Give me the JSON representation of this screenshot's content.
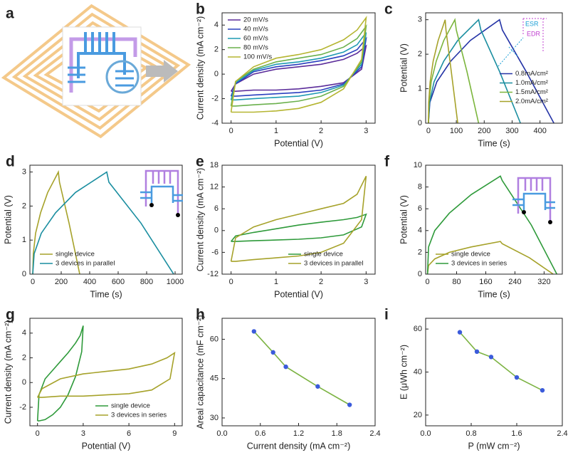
{
  "illustration": {
    "label": "a"
  },
  "chart_data": [
    {
      "type": "line",
      "label": "b",
      "x_label": "Potential (V)",
      "y_label": "Current density (mA cm⁻²)",
      "xlim": [
        -0.2,
        3.2
      ],
      "xticks": [
        0,
        1,
        2,
        3
      ],
      "ylim": [
        -4,
        5
      ],
      "yticks": [
        -4,
        -2,
        0,
        2,
        4
      ],
      "legend": "upper left",
      "x": [
        0,
        0.1,
        0.5,
        1,
        1.5,
        2,
        2.5,
        2.8,
        3,
        2.9,
        2.5,
        2,
        1.5,
        1,
        0.5,
        0.1,
        0
      ],
      "series": [
        {
          "name": "20 mV/s",
          "color": "#5b2c9a",
          "values": [
            -1.4,
            -0.8,
            0.0,
            0.4,
            0.6,
            0.8,
            1.2,
            1.7,
            2.3,
            0.4,
            -0.7,
            -1.0,
            -1.2,
            -1.3,
            -1.3,
            -1.4,
            -1.4
          ]
        },
        {
          "name": "40 mV/s",
          "color": "#2a3fbf",
          "values": [
            -1.8,
            -0.8,
            0.2,
            0.6,
            0.8,
            1.1,
            1.5,
            2.0,
            2.9,
            0.6,
            -0.8,
            -1.3,
            -1.5,
            -1.6,
            -1.7,
            -1.8,
            -1.8
          ]
        },
        {
          "name": "60 mV/s",
          "color": "#1f9bb3",
          "values": [
            -2.1,
            -0.7,
            0.3,
            0.8,
            1.0,
            1.3,
            1.8,
            2.4,
            3.4,
            0.8,
            -0.9,
            -1.5,
            -1.8,
            -1.9,
            -2.0,
            -2.1,
            -2.1
          ]
        },
        {
          "name": "80 mV/s",
          "color": "#6ab04c",
          "values": [
            -2.6,
            -0.6,
            0.4,
            1.0,
            1.3,
            1.6,
            2.2,
            2.9,
            3.9,
            1.0,
            -1.0,
            -1.8,
            -2.2,
            -2.4,
            -2.5,
            -2.6,
            -2.6
          ]
        },
        {
          "name": "100 mV/s",
          "color": "#b5b531",
          "values": [
            -3.1,
            -0.6,
            0.6,
            1.3,
            1.6,
            2.0,
            2.8,
            3.6,
            4.6,
            1.2,
            -1.2,
            -2.3,
            -2.8,
            -3.0,
            -3.1,
            -3.1,
            -3.1
          ]
        }
      ]
    },
    {
      "type": "line",
      "label": "c",
      "x_label": "Time (s)",
      "y_label": "Potential (V)",
      "xlim": [
        -10,
        480
      ],
      "xticks": [
        0,
        100,
        200,
        300,
        400
      ],
      "ylim": [
        0,
        3.2
      ],
      "yticks": [
        0,
        1,
        2,
        3
      ],
      "legend": "center right",
      "annotations": [
        "ESR",
        "EDR"
      ],
      "series": [
        {
          "name": "0.8mA/cm²",
          "color": "#2433a6",
          "x": [
            0,
            5,
            30,
            80,
            150,
            255,
            265,
            350,
            450
          ],
          "values": [
            0,
            0.6,
            1.2,
            1.8,
            2.4,
            3.0,
            2.7,
            1.5,
            0
          ]
        },
        {
          "name": "1.0mA/cm²",
          "color": "#1a8ea0",
          "x": [
            0,
            4,
            20,
            55,
            105,
            180,
            188,
            255,
            330
          ],
          "values": [
            0,
            0.6,
            1.2,
            1.8,
            2.4,
            3.0,
            2.7,
            1.5,
            0
          ]
        },
        {
          "name": "1.5mA/cm²",
          "color": "#7bb53c",
          "x": [
            0,
            2,
            10,
            28,
            55,
            95,
            100,
            138,
            180
          ],
          "values": [
            0,
            0.6,
            1.2,
            1.8,
            2.4,
            3.0,
            2.7,
            1.5,
            0
          ]
        },
        {
          "name": "2.0mA/cm²",
          "color": "#a6a22a",
          "x": [
            0,
            1,
            6,
            17,
            35,
            60,
            63,
            82,
            105
          ],
          "values": [
            0,
            0.6,
            1.2,
            1.8,
            2.4,
            3.0,
            2.7,
            1.5,
            0
          ]
        }
      ]
    },
    {
      "type": "line",
      "label": "d",
      "x_label": "Time (s)",
      "y_label": "Potential (V)",
      "xlim": [
        -20,
        1050
      ],
      "xticks": [
        0,
        200,
        400,
        600,
        800,
        1000
      ],
      "ylim": [
        0,
        3.2
      ],
      "yticks": [
        0,
        1,
        2,
        3
      ],
      "legend": "lower left",
      "series": [
        {
          "name": "single device",
          "color": "#a6a22a",
          "x": [
            0,
            4,
            20,
            55,
            105,
            180,
            188,
            255,
            330
          ],
          "values": [
            0,
            0.6,
            1.2,
            1.8,
            2.4,
            3.0,
            2.7,
            1.5,
            0
          ]
        },
        {
          "name": "3 devices in parallel",
          "color": "#1a8ea0",
          "x": [
            0,
            10,
            60,
            160,
            300,
            520,
            535,
            760,
            990
          ],
          "values": [
            0,
            0.6,
            1.2,
            1.8,
            2.4,
            3.0,
            2.7,
            1.5,
            0
          ]
        }
      ]
    },
    {
      "type": "line",
      "label": "e",
      "x_label": "Potential (V)",
      "y_label": "Current density (mA cm⁻²)",
      "xlim": [
        -0.2,
        3.2
      ],
      "xticks": [
        0,
        1,
        2,
        3
      ],
      "ylim": [
        -12,
        18
      ],
      "yticks": [
        -12,
        -6,
        0,
        6,
        12,
        18
      ],
      "legend": "lower right",
      "x": [
        0,
        0.1,
        0.5,
        1,
        1.5,
        2,
        2.5,
        2.8,
        3,
        2.9,
        2.5,
        2,
        1.5,
        1,
        0.5,
        0.1,
        0
      ],
      "series": [
        {
          "name": "single device",
          "color": "#2e9a3a",
          "values": [
            -3,
            -1.5,
            -0.5,
            0.5,
            1.5,
            2.3,
            3.0,
            3.6,
            4.5,
            1,
            -1.2,
            -2,
            -2.4,
            -2.6,
            -2.8,
            -3,
            -3
          ]
        },
        {
          "name": "3 devices in parallel",
          "color": "#a6a22a",
          "values": [
            -8.5,
            -2,
            1,
            3,
            4.5,
            6,
            7.5,
            10,
            15,
            3,
            -3.5,
            -6,
            -7,
            -7.5,
            -8,
            -8.5,
            -8.5
          ]
        }
      ]
    },
    {
      "type": "line",
      "label": "f",
      "x_label": "Time (s)",
      "y_label": "Potential (V)",
      "xlim": [
        -5,
        370
      ],
      "xticks": [
        0,
        80,
        160,
        240,
        320
      ],
      "ylim": [
        0,
        10
      ],
      "yticks": [
        0,
        2,
        4,
        6,
        8,
        10
      ],
      "legend": "lower left",
      "series": [
        {
          "name": "single device",
          "color": "#a6a22a",
          "x": [
            0,
            3,
            20,
            60,
            120,
            200,
            205,
            280,
            345
          ],
          "values": [
            0,
            0.8,
            1.4,
            2.0,
            2.5,
            3.0,
            2.8,
            1.5,
            0
          ]
        },
        {
          "name": "3 devices in series",
          "color": "#2e9a3a",
          "x": [
            0,
            3,
            20,
            60,
            120,
            200,
            205,
            285,
            355
          ],
          "values": [
            0,
            2.5,
            4,
            5.6,
            7.3,
            9,
            8.6,
            4.5,
            0
          ]
        }
      ]
    },
    {
      "type": "line",
      "label": "g",
      "x_label": "Potential (V)",
      "y_label": "Current density (mA cm⁻²)",
      "xlim": [
        -0.5,
        9.5
      ],
      "xticks": [
        0,
        3,
        6,
        9
      ],
      "ylim": [
        -3.5,
        5.2
      ],
      "yticks": [
        -2,
        0,
        2,
        4
      ],
      "legend": "lower right",
      "series": [
        {
          "name": "single device",
          "color": "#2e9a3a",
          "x": [
            0,
            0.1,
            0.5,
            1,
            1.5,
            2,
            2.5,
            2.8,
            3,
            2.9,
            2.5,
            2,
            1.5,
            1,
            0.5,
            0.1,
            0
          ],
          "values": [
            -3.1,
            -1,
            0.3,
            1,
            1.7,
            2.4,
            3.2,
            3.8,
            4.6,
            2.5,
            0.5,
            -1,
            -2,
            -2.6,
            -3,
            -3.1,
            -3.1
          ]
        },
        {
          "name": "3 devices in series",
          "color": "#a6a22a",
          "x": [
            0,
            0.3,
            1.5,
            3,
            4.5,
            6,
            7.5,
            8.5,
            9,
            8.7,
            7.5,
            6,
            4.5,
            3,
            1.5,
            0.3,
            0
          ],
          "values": [
            -1.2,
            -0.5,
            0.3,
            0.7,
            0.9,
            1.1,
            1.5,
            2,
            2.4,
            0.3,
            -0.6,
            -0.9,
            -1,
            -1.1,
            -1.1,
            -1.2,
            -1.2
          ]
        }
      ]
    },
    {
      "type": "line",
      "label": "h",
      "x_label": "Current density (mA cm⁻²)",
      "y_label": "Areal capacitance (mF cm⁻²)",
      "xlim": [
        0,
        2.4
      ],
      "xticks": [
        {
          "value": 0,
          "label": "0.0"
        },
        0.6,
        1.2,
        1.8,
        2.4
      ],
      "ylim": [
        27,
        68
      ],
      "yticks": [
        30,
        45,
        60
      ],
      "markers": true,
      "color": "#7cb342",
      "marker_color": "#3b5bdb",
      "x": [
        0.5,
        0.8,
        1.0,
        1.5,
        2.0
      ],
      "values": [
        63,
        55,
        49.5,
        42,
        35
      ]
    },
    {
      "type": "line",
      "label": "i",
      "x_label": "P (mW cm⁻²)",
      "y_label": "E (μWh cm⁻²)",
      "xlim": [
        0,
        2.4
      ],
      "xticks": [
        {
          "value": 0,
          "label": "0.0"
        },
        0.8,
        1.6,
        2.4
      ],
      "ylim": [
        15,
        65
      ],
      "yticks": [
        20,
        40,
        60
      ],
      "markers": true,
      "color": "#7cb342",
      "marker_color": "#3b5bdb",
      "x": [
        0.6,
        0.9,
        1.15,
        1.6,
        2.05
      ],
      "values": [
        58.5,
        49.5,
        47,
        37.5,
        31.5
      ]
    }
  ]
}
